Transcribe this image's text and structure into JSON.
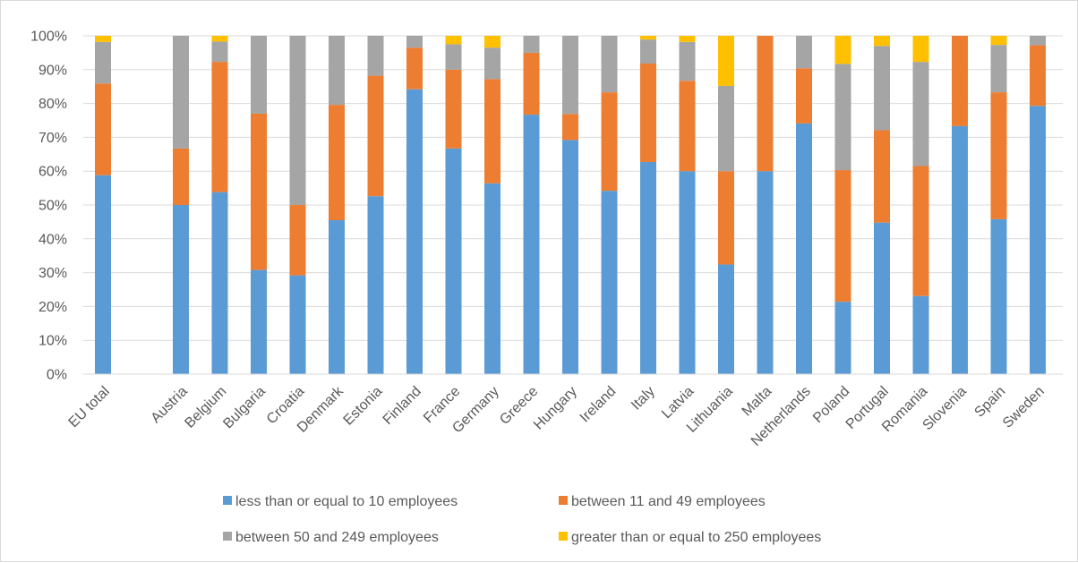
{
  "chart_data": {
    "type": "bar",
    "stacked": true,
    "percent_stacked": true,
    "title": "",
    "xlabel": "",
    "ylabel": "",
    "ylim": [
      0,
      100
    ],
    "yticks": [
      "0%",
      "10%",
      "20%",
      "30%",
      "40%",
      "50%",
      "60%",
      "70%",
      "80%",
      "90%",
      "100%"
    ],
    "grid": true,
    "legend_position": "bottom",
    "categories": [
      "EU total",
      "",
      "Austria",
      "Belgium",
      "Bulgaria",
      "Croatia",
      "Denmark",
      "Estonia",
      "Finland",
      "France",
      "Germany",
      "Greece",
      "Hungary",
      "Ireland",
      "Italy",
      "Latvia",
      "Lithuania",
      "Malta",
      "Netherlands",
      "Poland",
      "Portugal",
      "Romania",
      "Slovenia",
      "Spain",
      "Sweden"
    ],
    "series": [
      {
        "name": "less than or equal to 10 employees",
        "color": "#5b9bd5",
        "values": [
          58.8,
          null,
          50,
          53.8,
          30.8,
          29.2,
          45.5,
          52.6,
          84.2,
          66.7,
          56.4,
          76.7,
          69.2,
          54.2,
          62.7,
          60,
          32.4,
          60,
          74.1,
          21.4,
          44.8,
          23.1,
          73.3,
          45.8,
          79.3
        ]
      },
      {
        "name": "between 11 and 49 employees",
        "color": "#ed7d31",
        "values": [
          27.1,
          null,
          16.7,
          38.5,
          46.2,
          20.8,
          34.1,
          35.6,
          12.3,
          23.3,
          30.8,
          18.3,
          7.7,
          29.1,
          29.1,
          26.7,
          27.6,
          40,
          16.3,
          38.9,
          27.3,
          38.4,
          26.7,
          37.5,
          17.9
        ]
      },
      {
        "name": "between 50 and 249 employees",
        "color": "#a5a5a5",
        "values": [
          12.3,
          null,
          33.3,
          6.0,
          23.0,
          50.0,
          20.4,
          11.8,
          3.5,
          7.5,
          9.3,
          5.0,
          23.1,
          16.7,
          7.1,
          11.5,
          25.2,
          0,
          9.6,
          31.4,
          24.9,
          30.8,
          0,
          14.0,
          2.8
        ]
      },
      {
        "name": "greater than or equal to 250 employees",
        "color": "#ffc000",
        "values": [
          1.8,
          null,
          0,
          1.7,
          0,
          0,
          0,
          0,
          0,
          2.5,
          3.5,
          0,
          0,
          0,
          1.1,
          1.8,
          14.8,
          0,
          0,
          8.3,
          3.0,
          7.7,
          0,
          2.7,
          0
        ]
      }
    ]
  }
}
